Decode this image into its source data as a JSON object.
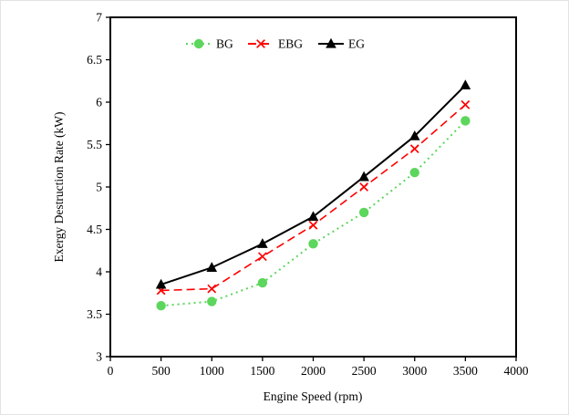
{
  "chart_data": {
    "type": "line",
    "title": "",
    "xlabel": "Engine Speed (rpm)",
    "ylabel": "Exergy Destruction Rate (kW)",
    "x": [
      500,
      1000,
      1500,
      2000,
      2500,
      3000,
      3500
    ],
    "xlim": [
      0,
      4000
    ],
    "xticks": [
      0,
      500,
      1000,
      1500,
      2000,
      2500,
      3000,
      3500,
      4000
    ],
    "ylim": [
      3,
      7
    ],
    "yticks": [
      3,
      3.5,
      4,
      4.5,
      5,
      5.5,
      6,
      6.5,
      7
    ],
    "grid": false,
    "legend_position": "top-center-inside",
    "series": [
      {
        "name": "BG",
        "color": "#5cd65c",
        "line_style": "dotted",
        "marker": "circle",
        "values": [
          3.6,
          3.65,
          3.87,
          4.33,
          4.7,
          5.17,
          5.78
        ]
      },
      {
        "name": "EBG",
        "color": "#ff0000",
        "line_style": "dashed",
        "marker": "x",
        "values": [
          3.78,
          3.8,
          4.18,
          4.55,
          5.0,
          5.45,
          5.97
        ]
      },
      {
        "name": "EG",
        "color": "#000000",
        "line_style": "solid",
        "marker": "triangle",
        "values": [
          3.85,
          4.05,
          4.33,
          4.65,
          5.12,
          5.6,
          6.2
        ]
      }
    ]
  }
}
